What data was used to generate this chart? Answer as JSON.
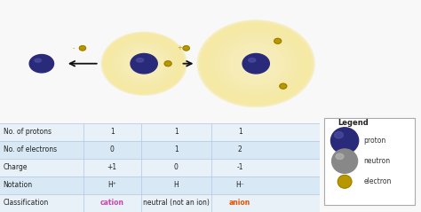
{
  "bg_color": "#f8f8f8",
  "diagram_bg": "#ffffff",
  "atom_color_outer": "#f5e8a0",
  "atom_color_inner": "#faf3cc",
  "proton_color_dark": "#2a2a7a",
  "proton_color_light": "#5555aa",
  "electron_color": "#b89800",
  "electron_ring_color": "#997700",
  "arrow_color": "#111111",
  "table_bg1": "#e8f0f8",
  "table_bg2": "#d8e8f4",
  "table_line_color": "#b0c8e0",
  "cation_color": "#cc44aa",
  "anion_color": "#e05500",
  "legend_bg": "#ffffff",
  "legend_border": "#aaaaaa",
  "rows": [
    [
      "No. of protons",
      "1",
      "1",
      "1"
    ],
    [
      "No. of electrons",
      "0",
      "1",
      "2"
    ],
    [
      "Charge",
      "+1",
      "0",
      "-1"
    ],
    [
      "Notation",
      "H⁺",
      "H",
      "H⁻"
    ],
    [
      "Classification",
      "cation",
      "neutral (not an ion)",
      "anion"
    ]
  ]
}
